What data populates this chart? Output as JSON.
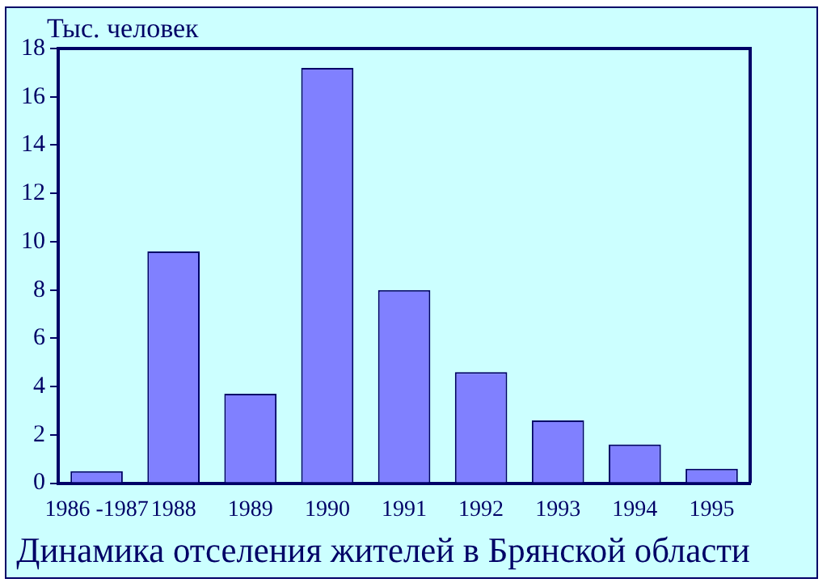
{
  "chart_data": {
    "type": "bar",
    "title": "Динамика отселения жителей в Брянской области",
    "ylabel": "Тыс. человек",
    "categories": [
      "1986 -1987",
      "1988",
      "1989",
      "1990",
      "1991",
      "1992",
      "1993",
      "1994",
      "1995"
    ],
    "values": [
      0.5,
      9.6,
      3.7,
      17.2,
      8.0,
      4.6,
      2.6,
      1.6,
      0.6
    ],
    "color": "#8080ff",
    "ylim": [
      0,
      18
    ],
    "yticks": [
      0,
      2,
      4,
      6,
      8,
      10,
      12,
      14,
      16,
      18
    ],
    "grid": false,
    "legend": false
  }
}
